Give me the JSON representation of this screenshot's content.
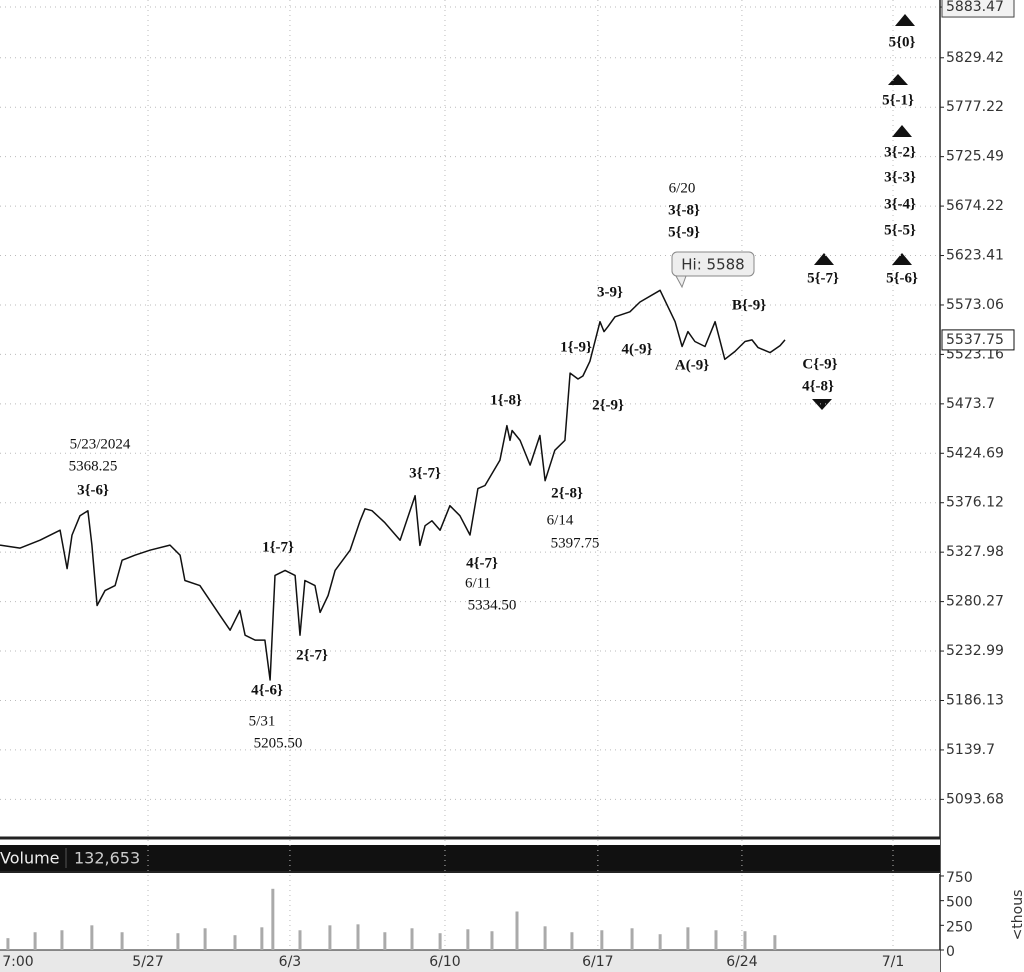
{
  "chart_data": [
    {
      "type": "line",
      "log_scale": true,
      "grid": true,
      "color": "#111111",
      "x": [
        0,
        0.66,
        1.31,
        1.97,
        2.2,
        2.36,
        2.62,
        2.88,
        3.01,
        3.18,
        3.44,
        3.77,
        4.0,
        4.42,
        4.91,
        5.57,
        5.9,
        6.06,
        6.55,
        6.88,
        7.21,
        7.54,
        7.86,
        8.03,
        8.36,
        8.68,
        8.85,
        9.01,
        9.34,
        9.67,
        9.83,
        9.99,
        10.32,
        10.49,
        10.75,
        10.98,
        11.47,
        11.8,
        11.96,
        12.19,
        12.61,
        13.11,
        13.6,
        13.76,
        13.93,
        14.15,
        14.42,
        14.74,
        15.07,
        15.4,
        15.66,
        15.89,
        16.38,
        16.61,
        16.71,
        16.78,
        17.04,
        17.37,
        17.69,
        17.86,
        18.18,
        18.51,
        18.68,
        18.94,
        19.1,
        19.33,
        19.66,
        19.79,
        19.92,
        20.15,
        20.64,
        20.97,
        21.63,
        22.12,
        22.35,
        22.54,
        22.77,
        23.1,
        23.43,
        23.75,
        24.08,
        24.41,
        24.64,
        24.84,
        25.23,
        25.56,
        25.72
      ],
      "values": [
        5334.8,
        5331.9,
        5339.6,
        5349.3,
        5312.1,
        5344.5,
        5363.4,
        5368.25,
        5334.8,
        5276.5,
        5290.9,
        5295.7,
        5320.2,
        5325.0,
        5329.9,
        5334.8,
        5325.0,
        5300.6,
        5295.7,
        5281.2,
        5267.0,
        5252.9,
        5271.8,
        5248.1,
        5243.4,
        5243.4,
        5205.5,
        5305.5,
        5310.3,
        5305.5,
        5248.1,
        5300.6,
        5295.7,
        5269.9,
        5286.1,
        5310.3,
        5329.9,
        5358.5,
        5370.2,
        5368.3,
        5356.6,
        5339.6,
        5383.0,
        5334.5,
        5353.7,
        5358.5,
        5349.3,
        5373.2,
        5363.4,
        5344.6,
        5390.0,
        5393.0,
        5417.8,
        5452.1,
        5437.4,
        5447.2,
        5437.4,
        5413.0,
        5442.3,
        5397.75,
        5427.6,
        5437.4,
        5504.4,
        5498.5,
        5501.5,
        5516.2,
        5556.1,
        5546.1,
        5551.1,
        5561.1,
        5566.1,
        5576.1,
        5588,
        5556.1,
        5531.1,
        5546.1,
        5536.1,
        5531.1,
        5556.1,
        5518.2,
        5526.1,
        5536.1,
        5537.75,
        5530.0,
        5525.0,
        5532.0,
        5537.75
      ],
      "xlim": [
        0,
        30.8
      ],
      "xticks": [
        {
          "value": 0.59,
          "label": "7:00"
        },
        {
          "value": 4.85,
          "label": "5/27"
        },
        {
          "value": 9.5,
          "label": "6/3"
        },
        {
          "value": 14.58,
          "label": "6/10"
        },
        {
          "value": 19.59,
          "label": "6/17"
        },
        {
          "value": 24.31,
          "label": "6/24"
        },
        {
          "value": 29.26,
          "label": "7/1"
        }
      ],
      "ylim": [
        5058,
        5891
      ],
      "yticks": [
        5093.68,
        5139.7,
        5186.13,
        5232.99,
        5280.27,
        5327.98,
        5376.12,
        5424.69,
        5473.7,
        5523.16,
        5573.06,
        5623.41,
        5674.22,
        5725.49,
        5777.22,
        5829.42,
        5883.47
      ],
      "last_price": 5537.75,
      "high_callout": "Hi: 5588",
      "annotations": [
        "5/23/2024",
        "5368.25",
        "3{-6}",
        "1{-7}",
        "2{-7}",
        "4{-6}",
        "5/31",
        "5205.50",
        "3{-7}",
        "4{-7}",
        "6/11",
        "5334.50",
        "1{-8}",
        "2{-8}",
        "6/14",
        "5397.75",
        "1{-9}",
        "2{-9}",
        "3-9}",
        "4(-9}",
        "6/20",
        "3{-8}",
        "5{-9}",
        "A(-9}",
        "B{-9}",
        "C{-9}",
        "4{-8}",
        "5{-7}",
        "5{0}",
        "5{-1}",
        "3{-2}",
        "3{-3}",
        "3{-4}",
        "5{-5}",
        "5{-6}"
      ]
    },
    {
      "type": "bar",
      "title": "Volume",
      "current": {
        "value": 132653,
        "label": "132,653"
      },
      "y_label": "<thous",
      "color": "#aaaaaa",
      "x": [
        0.26,
        1.15,
        2.03,
        3.01,
        4.0,
        5.83,
        6.72,
        7.7,
        8.58,
        8.94,
        9.83,
        10.81,
        11.73,
        12.61,
        13.5,
        14.42,
        15.33,
        16.12,
        16.94,
        17.86,
        18.74,
        19.72,
        20.71,
        21.63,
        22.54,
        23.46,
        24.41,
        25.39
      ],
      "values": [
        120,
        180,
        200,
        250,
        180,
        170,
        220,
        150,
        230,
        620,
        200,
        250,
        260,
        180,
        220,
        170,
        210,
        190,
        390,
        240,
        180,
        200,
        220,
        160,
        230,
        200,
        190,
        150
      ],
      "ylim": [
        0,
        770
      ],
      "yticks": [
        0,
        250,
        500,
        750
      ]
    }
  ]
}
